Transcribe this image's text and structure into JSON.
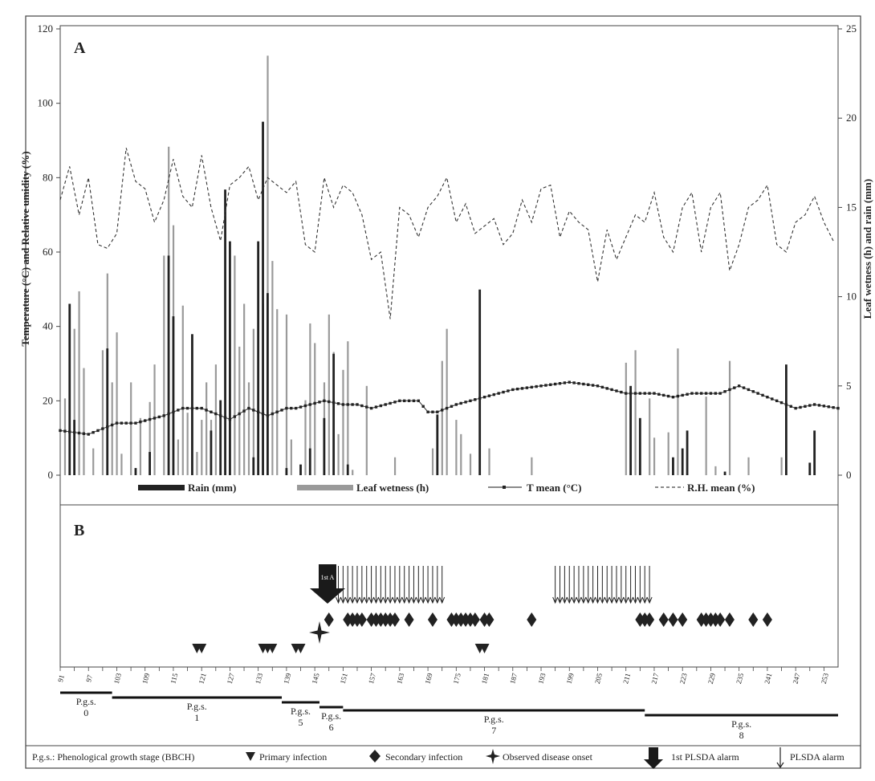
{
  "panelA": {
    "label": "A",
    "ylabel_left": "Temperature (°C) and Relative umidity (%)",
    "ylabel_right": "Leaf wetness (h) and rain (mm)",
    "left_ticks": [
      "0",
      "20",
      "40",
      "60",
      "80",
      "100",
      "120"
    ],
    "right_ticks": [
      "0",
      "5",
      "10",
      "15",
      "20",
      "25"
    ],
    "legend": {
      "rain": "Rain (mm)",
      "leaf_wetness": "Leaf wetness (h)",
      "t_mean": "T mean (°C)",
      "rh_mean": "R.H. mean (%)"
    }
  },
  "panelB": {
    "label": "B",
    "first_alarm_text": "1st A",
    "x_ticks": [
      "91",
      "97",
      "103",
      "109",
      "115",
      "121",
      "127",
      "133",
      "139",
      "145",
      "151",
      "157",
      "163",
      "169",
      "175",
      "181",
      "187",
      "193",
      "199",
      "205",
      "211",
      "217",
      "223",
      "229",
      "235",
      "241",
      "247",
      "253"
    ],
    "stages": [
      {
        "name": "P.g.s.",
        "num": "0",
        "start": 91,
        "end": 102
      },
      {
        "name": "P.g.s.",
        "num": "1",
        "start": 102,
        "end": 138
      },
      {
        "name": "P.g.s.",
        "num": "5",
        "start": 138,
        "end": 146
      },
      {
        "name": "P.g.s.",
        "num": "6",
        "start": 146,
        "end": 151
      },
      {
        "name": "P.g.s.",
        "num": "7",
        "start": 151,
        "end": 215
      },
      {
        "name": "P.g.s.",
        "num": "8",
        "start": 215,
        "end": 256
      }
    ]
  },
  "footer": {
    "pgs_def": "P.g.s.: Phenological growth stage (BBCH)",
    "primary": "Primary infection",
    "secondary": "Secondary infection",
    "onset": "Observed disease onset",
    "first_alarm": "1st PLSDA alarm",
    "alarm": "PLSDA alarm"
  },
  "chart_data": [
    {
      "type": "bar",
      "title": "",
      "x_range": [
        91,
        256
      ],
      "ylabel_left": "Temperature (°C) and Relative umidity (%)",
      "ylabel_right": "Leaf wetness (h) and rain (mm)",
      "ylim_left": [
        0,
        120
      ],
      "ylim_right": [
        0,
        25
      ],
      "legend_position": "bottom",
      "series": [
        {
          "name": "Rain (mm)",
          "kind": "bar",
          "axis": "right",
          "color": "#222222",
          "points": [
            [
              93,
              9.6
            ],
            [
              94,
              3.1
            ],
            [
              101,
              7.1
            ],
            [
              107,
              0.4
            ],
            [
              110,
              1.3
            ],
            [
              114,
              12.3
            ],
            [
              115,
              8.9
            ],
            [
              119,
              7.9
            ],
            [
              123,
              2.5
            ],
            [
              125,
              4.2
            ],
            [
              126,
              16.0
            ],
            [
              127,
              13.1
            ],
            [
              132,
              1.0
            ],
            [
              133,
              13.1
            ],
            [
              134,
              19.8
            ],
            [
              135,
              10.2
            ],
            [
              139,
              0.4
            ],
            [
              142,
              0.6
            ],
            [
              144,
              1.5
            ],
            [
              147,
              3.2
            ],
            [
              149,
              6.8
            ],
            [
              152,
              0.6
            ],
            [
              171,
              3.4
            ],
            [
              180,
              10.4
            ],
            [
              212,
              5.0
            ],
            [
              214,
              3.2
            ],
            [
              221,
              1.0
            ],
            [
              223,
              1.5
            ],
            [
              224,
              2.5
            ],
            [
              232,
              0.2
            ],
            [
              245,
              6.2
            ],
            [
              250,
              0.7
            ],
            [
              251,
              2.5
            ]
          ]
        },
        {
          "name": "Leaf wetness (h)",
          "kind": "bar",
          "axis": "right",
          "color": "#9a9a9a",
          "points": [
            [
              92,
              4.3
            ],
            [
              94,
              8.2
            ],
            [
              95,
              10.3
            ],
            [
              96,
              6.0
            ],
            [
              98,
              1.5
            ],
            [
              100,
              7.0
            ],
            [
              101,
              11.3
            ],
            [
              102,
              5.2
            ],
            [
              103,
              8.0
            ],
            [
              104,
              1.2
            ],
            [
              106,
              5.2
            ],
            [
              108,
              3.2
            ],
            [
              110,
              4.1
            ],
            [
              111,
              6.2
            ],
            [
              113,
              12.3
            ],
            [
              114,
              18.4
            ],
            [
              115,
              14.0
            ],
            [
              116,
              2.0
            ],
            [
              117,
              9.5
            ],
            [
              118,
              3.5
            ],
            [
              120,
              1.3
            ],
            [
              121,
              3.1
            ],
            [
              122,
              5.2
            ],
            [
              123,
              3.1
            ],
            [
              124,
              6.2
            ],
            [
              126,
              11.4
            ],
            [
              127,
              10.4
            ],
            [
              128,
              12.3
            ],
            [
              129,
              7.2
            ],
            [
              130,
              9.6
            ],
            [
              131,
              5.2
            ],
            [
              132,
              8.2
            ],
            [
              133,
              6.2
            ],
            [
              134,
              9.6
            ],
            [
              135,
              23.5
            ],
            [
              136,
              12.0
            ],
            [
              137,
              9.3
            ],
            [
              139,
              9.0
            ],
            [
              140,
              2.0
            ],
            [
              143,
              4.2
            ],
            [
              144,
              8.5
            ],
            [
              145,
              7.4
            ],
            [
              147,
              5.2
            ],
            [
              148,
              9.0
            ],
            [
              149,
              6.9
            ],
            [
              150,
              2.3
            ],
            [
              151,
              5.9
            ],
            [
              152,
              7.5
            ],
            [
              153,
              0.3
            ],
            [
              156,
              5.0
            ],
            [
              162,
              1.0
            ],
            [
              170,
              1.5
            ],
            [
              171,
              2.6
            ],
            [
              172,
              6.4
            ],
            [
              173,
              8.2
            ],
            [
              175,
              3.1
            ],
            [
              176,
              2.3
            ],
            [
              178,
              1.2
            ],
            [
              182,
              1.5
            ],
            [
              191,
              1.0
            ],
            [
              211,
              6.3
            ],
            [
              213,
              7.0
            ],
            [
              214,
              1.9
            ],
            [
              216,
              4.3
            ],
            [
              217,
              2.1
            ],
            [
              220,
              2.4
            ],
            [
              222,
              7.1
            ],
            [
              228,
              4.4
            ],
            [
              230,
              0.5
            ],
            [
              233,
              6.4
            ],
            [
              237,
              1.0
            ],
            [
              244,
              1.0
            ]
          ]
        },
        {
          "name": "T mean (°C)",
          "kind": "line",
          "axis": "left",
          "color": "#333333",
          "marker": "square",
          "x": [
            91,
            97,
            103,
            107,
            113,
            117,
            121,
            127,
            131,
            135,
            139,
            141,
            147,
            151,
            154,
            157,
            163,
            167,
            169,
            171,
            175,
            181,
            187,
            193,
            199,
            205,
            211,
            217,
            221,
            225,
            231,
            235,
            241,
            247,
            251,
            256
          ],
          "y": [
            12,
            11,
            14,
            14,
            16,
            18,
            18,
            15,
            18,
            16,
            18,
            18,
            20,
            19,
            19,
            18,
            20,
            20,
            17,
            17,
            19,
            21,
            23,
            24,
            25,
            24,
            22,
            22,
            21,
            22,
            22,
            24,
            21,
            18,
            19,
            18
          ]
        },
        {
          "name": "R.H. mean (%)",
          "kind": "line",
          "axis": "left",
          "color": "#333333",
          "dash": true,
          "x": [
            91,
            93,
            95,
            97,
            99,
            101,
            103,
            105,
            107,
            109,
            111,
            113,
            115,
            117,
            119,
            121,
            123,
            125,
            127,
            129,
            131,
            133,
            135,
            137,
            139,
            141,
            143,
            145,
            147,
            149,
            151,
            153,
            155,
            157,
            159,
            161,
            163,
            165,
            167,
            169,
            171,
            173,
            175,
            177,
            179,
            181,
            183,
            185,
            187,
            189,
            191,
            193,
            195,
            197,
            199,
            201,
            203,
            205,
            207,
            209,
            211,
            213,
            215,
            217,
            219,
            221,
            223,
            225,
            227,
            229,
            231,
            233,
            235,
            237,
            239,
            241,
            243,
            245,
            247,
            249,
            251,
            253,
            255
          ],
          "y": [
            74,
            83,
            70,
            80,
            62,
            61,
            65,
            88,
            79,
            77,
            68,
            74,
            85,
            75,
            72,
            86,
            72,
            63,
            78,
            80,
            83,
            74,
            80,
            78,
            76,
            79,
            62,
            60,
            80,
            72,
            78,
            76,
            70,
            58,
            60,
            42,
            72,
            70,
            64,
            72,
            75,
            80,
            68,
            73,
            65,
            67,
            69,
            62,
            65,
            74,
            68,
            77,
            78,
            64,
            71,
            68,
            66,
            52,
            66,
            58,
            64,
            70,
            68,
            76,
            64,
            60,
            72,
            76,
            60,
            72,
            76,
            55,
            62,
            72,
            74,
            78,
            62,
            60,
            68,
            70,
            75,
            68,
            63
          ]
        }
      ]
    },
    {
      "type": "scatter",
      "title": "",
      "x_range": [
        91,
        256
      ],
      "xlabel": "",
      "x_ticks": [
        91,
        97,
        103,
        109,
        115,
        121,
        127,
        133,
        139,
        145,
        151,
        157,
        163,
        169,
        175,
        181,
        187,
        193,
        199,
        205,
        211,
        217,
        223,
        229,
        235,
        241,
        247,
        253
      ],
      "legend_position": "bottom",
      "series": [
        {
          "name": "Primary infection",
          "marker": "triangle-down",
          "x": [
            120,
            121,
            134,
            135,
            136,
            141,
            142,
            180,
            181
          ]
        },
        {
          "name": "Secondary infection",
          "marker": "diamond",
          "x": [
            148,
            152,
            153,
            154,
            155,
            157,
            158,
            159,
            160,
            161,
            162,
            165,
            170,
            174,
            175,
            176,
            177,
            178,
            179,
            181,
            182,
            191,
            214,
            215,
            216,
            219,
            221,
            223,
            227,
            228,
            229,
            230,
            231,
            233,
            238,
            241
          ]
        },
        {
          "name": "Observed disease onset",
          "marker": "star",
          "x": [
            146
          ]
        },
        {
          "name": "1st PLSDA alarm",
          "marker": "big-arrow",
          "x": [
            147
          ]
        },
        {
          "name": "PLSDA alarm",
          "marker": "arrow",
          "x": [
            150,
            151,
            152,
            153,
            154,
            155,
            156,
            157,
            158,
            159,
            160,
            161,
            162,
            163,
            164,
            165,
            166,
            167,
            168,
            169,
            170,
            171,
            172,
            196,
            197,
            198,
            199,
            200,
            201,
            202,
            203,
            204,
            205,
            206,
            207,
            208,
            209,
            210,
            211,
            212,
            213,
            214,
            215,
            216
          ]
        }
      ]
    }
  ]
}
